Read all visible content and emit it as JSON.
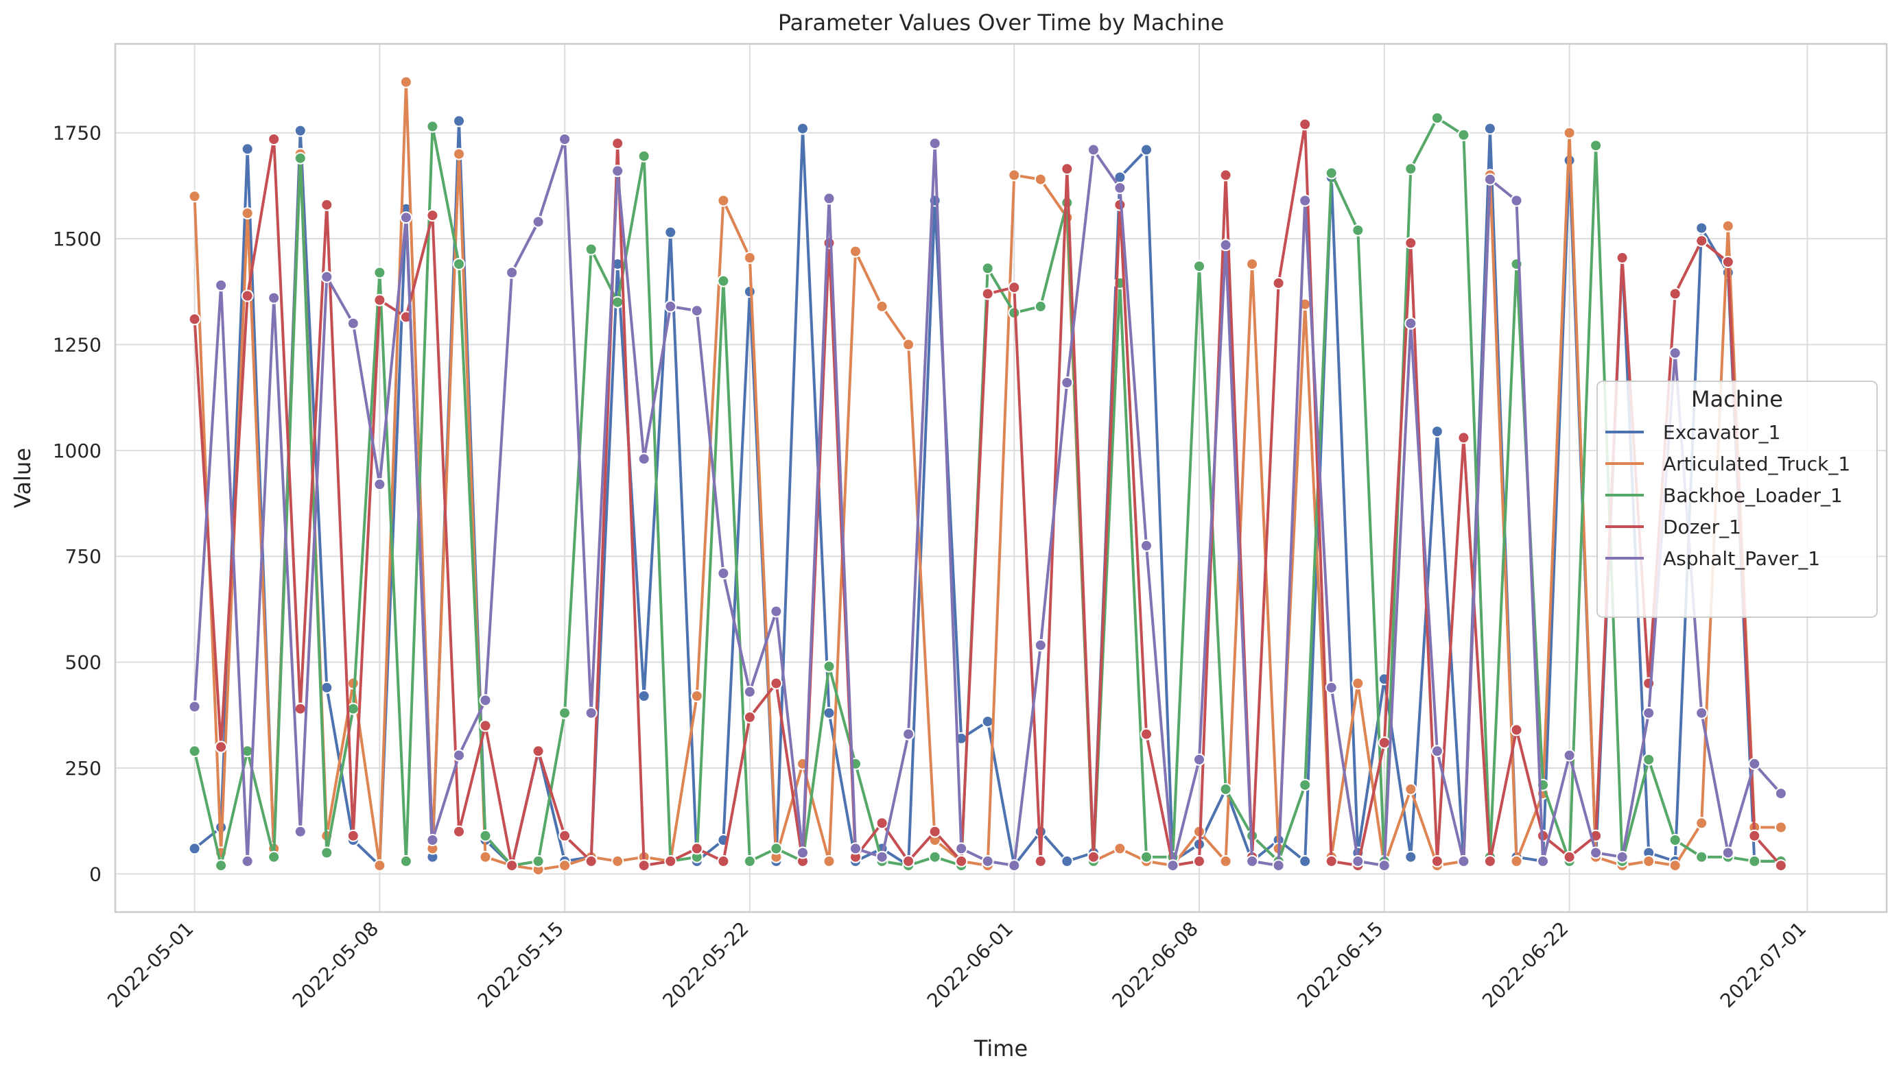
{
  "chart_data": {
    "type": "line",
    "title": "Parameter Values Over Time by Machine",
    "xlabel": "Time",
    "ylabel": "Value",
    "xlim": [
      "2022-04-28",
      "2022-07-04"
    ],
    "ylim": [
      -90,
      1960
    ],
    "x_ticks": [
      "2022-05-01",
      "2022-05-08",
      "2022-05-15",
      "2022-05-22",
      "2022-06-01",
      "2022-06-08",
      "2022-06-15",
      "2022-06-22",
      "2022-07-01"
    ],
    "y_ticks": [
      0,
      250,
      500,
      750,
      1000,
      1250,
      1500,
      1750
    ],
    "grid": true,
    "legend": {
      "title": "Machine",
      "position": "center-right"
    },
    "series": [
      {
        "name": "Excavator_1",
        "color": "#4c72b0",
        "x": [
          "2022-05-01",
          "2022-05-02",
          "2022-05-03",
          "2022-05-04",
          "2022-05-05",
          "2022-05-06",
          "2022-05-07",
          "2022-05-08",
          "2022-05-09",
          "2022-05-10",
          "2022-05-11",
          "2022-05-12",
          "2022-05-13",
          "2022-05-14",
          "2022-05-15",
          "2022-05-16",
          "2022-05-17",
          "2022-05-18",
          "2022-05-19",
          "2022-05-20",
          "2022-05-21",
          "2022-05-22",
          "2022-05-23",
          "2022-05-24",
          "2022-05-25",
          "2022-05-26",
          "2022-05-27",
          "2022-05-28",
          "2022-05-29",
          "2022-05-30",
          "2022-05-31",
          "2022-06-01",
          "2022-06-02",
          "2022-06-03",
          "2022-06-04",
          "2022-06-05",
          "2022-06-06",
          "2022-06-07",
          "2022-06-08",
          "2022-06-09",
          "2022-06-10",
          "2022-06-11",
          "2022-06-12",
          "2022-06-13",
          "2022-06-14",
          "2022-06-15",
          "2022-06-16",
          "2022-06-17",
          "2022-06-18",
          "2022-06-19",
          "2022-06-20",
          "2022-06-21",
          "2022-06-22",
          "2022-06-23",
          "2022-06-24",
          "2022-06-25",
          "2022-06-26",
          "2022-06-27",
          "2022-06-28",
          "2022-06-29",
          "2022-06-30"
        ],
        "y": [
          60,
          110,
          1712,
          50,
          1755,
          440,
          80,
          20,
          1570,
          40,
          1778,
          80,
          20,
          290,
          30,
          40,
          1440,
          420,
          1515,
          30,
          80,
          1375,
          30,
          1760,
          380,
          30,
          60,
          20,
          1590,
          320,
          360,
          20,
          100,
          30,
          50,
          1645,
          1710,
          30,
          70,
          200,
          30,
          80,
          30,
          1645,
          50,
          460,
          40,
          1045,
          30,
          1760,
          40,
          30,
          1685,
          40,
          1455,
          50,
          30,
          1525,
          1420,
          30,
          30
        ]
      },
      {
        "name": "Articulated_Truck_1",
        "color": "#dd8452",
        "x": [
          "2022-05-01",
          "2022-05-02",
          "2022-05-03",
          "2022-05-04",
          "2022-05-05",
          "2022-05-06",
          "2022-05-07",
          "2022-05-08",
          "2022-05-09",
          "2022-05-10",
          "2022-05-11",
          "2022-05-12",
          "2022-05-13",
          "2022-05-14",
          "2022-05-15",
          "2022-05-16",
          "2022-05-17",
          "2022-05-18",
          "2022-05-19",
          "2022-05-20",
          "2022-05-21",
          "2022-05-22",
          "2022-05-23",
          "2022-05-24",
          "2022-05-25",
          "2022-05-26",
          "2022-05-27",
          "2022-05-28",
          "2022-05-29",
          "2022-05-30",
          "2022-05-31",
          "2022-06-01",
          "2022-06-02",
          "2022-06-03",
          "2022-06-04",
          "2022-06-05",
          "2022-06-06",
          "2022-06-07",
          "2022-06-08",
          "2022-06-09",
          "2022-06-10",
          "2022-06-11",
          "2022-06-12",
          "2022-06-13",
          "2022-06-14",
          "2022-06-15",
          "2022-06-16",
          "2022-06-17",
          "2022-06-18",
          "2022-06-19",
          "2022-06-20",
          "2022-06-21",
          "2022-06-22",
          "2022-06-23",
          "2022-06-24",
          "2022-06-25",
          "2022-06-26",
          "2022-06-27",
          "2022-06-28",
          "2022-06-29",
          "2022-06-30"
        ],
        "y": [
          1600,
          50,
          1560,
          60,
          1700,
          90,
          450,
          20,
          1870,
          60,
          1700,
          40,
          20,
          10,
          20,
          40,
          30,
          40,
          30,
          420,
          1590,
          1455,
          40,
          260,
          30,
          1470,
          1340,
          1250,
          80,
          30,
          20,
          1650,
          1640,
          1550,
          30,
          60,
          30,
          20,
          100,
          30,
          1440,
          60,
          1345,
          40,
          450,
          20,
          200,
          20,
          30,
          1650,
          30,
          190,
          1750,
          40,
          20,
          30,
          20,
          120,
          1530,
          110,
          110
        ]
      },
      {
        "name": "Backhoe_Loader_1",
        "color": "#55a868",
        "x": [
          "2022-05-01",
          "2022-05-02",
          "2022-05-03",
          "2022-05-04",
          "2022-05-05",
          "2022-05-06",
          "2022-05-07",
          "2022-05-08",
          "2022-05-09",
          "2022-05-10",
          "2022-05-11",
          "2022-05-12",
          "2022-05-13",
          "2022-05-14",
          "2022-05-15",
          "2022-05-16",
          "2022-05-17",
          "2022-05-18",
          "2022-05-19",
          "2022-05-20",
          "2022-05-21",
          "2022-05-22",
          "2022-05-23",
          "2022-05-24",
          "2022-05-25",
          "2022-05-26",
          "2022-05-27",
          "2022-05-28",
          "2022-05-29",
          "2022-05-30",
          "2022-05-31",
          "2022-06-01",
          "2022-06-02",
          "2022-06-03",
          "2022-06-04",
          "2022-06-05",
          "2022-06-06",
          "2022-06-07",
          "2022-06-08",
          "2022-06-09",
          "2022-06-10",
          "2022-06-11",
          "2022-06-12",
          "2022-06-13",
          "2022-06-14",
          "2022-06-15",
          "2022-06-16",
          "2022-06-17",
          "2022-06-18",
          "2022-06-19",
          "2022-06-20",
          "2022-06-21",
          "2022-06-22",
          "2022-06-23",
          "2022-06-24",
          "2022-06-25",
          "2022-06-26",
          "2022-06-27",
          "2022-06-28",
          "2022-06-29",
          "2022-06-30"
        ],
        "y": [
          290,
          20,
          290,
          40,
          1690,
          50,
          390,
          1420,
          30,
          1765,
          1440,
          90,
          20,
          30,
          380,
          1475,
          1350,
          1695,
          30,
          40,
          1400,
          30,
          60,
          30,
          490,
          260,
          30,
          20,
          40,
          20,
          1430,
          1325,
          1340,
          1585,
          30,
          1395,
          40,
          40,
          1435,
          200,
          90,
          30,
          210,
          1655,
          1520,
          30,
          1665,
          1785,
          1745,
          40,
          1440,
          210,
          30,
          1720,
          30,
          270,
          80,
          40,
          40,
          30,
          30
        ]
      },
      {
        "name": "Dozer_1",
        "color": "#c44e52",
        "x": [
          "2022-05-01",
          "2022-05-02",
          "2022-05-03",
          "2022-05-04",
          "2022-05-05",
          "2022-05-06",
          "2022-05-07",
          "2022-05-08",
          "2022-05-09",
          "2022-05-10",
          "2022-05-11",
          "2022-05-12",
          "2022-05-13",
          "2022-05-14",
          "2022-05-15",
          "2022-05-16",
          "2022-05-17",
          "2022-05-18",
          "2022-05-19",
          "2022-05-20",
          "2022-05-21",
          "2022-05-22",
          "2022-05-23",
          "2022-05-24",
          "2022-05-25",
          "2022-05-26",
          "2022-05-27",
          "2022-05-28",
          "2022-05-29",
          "2022-05-30",
          "2022-05-31",
          "2022-06-01",
          "2022-06-02",
          "2022-06-03",
          "2022-06-04",
          "2022-06-05",
          "2022-06-06",
          "2022-06-07",
          "2022-06-08",
          "2022-06-09",
          "2022-06-10",
          "2022-06-11",
          "2022-06-12",
          "2022-06-13",
          "2022-06-14",
          "2022-06-15",
          "2022-06-16",
          "2022-06-17",
          "2022-06-18",
          "2022-06-19",
          "2022-06-20",
          "2022-06-21",
          "2022-06-22",
          "2022-06-23",
          "2022-06-24",
          "2022-06-25",
          "2022-06-26",
          "2022-06-27",
          "2022-06-28",
          "2022-06-29",
          "2022-06-30"
        ],
        "y": [
          1310,
          300,
          1365,
          1735,
          390,
          1580,
          90,
          1355,
          1315,
          1555,
          100,
          350,
          20,
          290,
          90,
          30,
          1725,
          20,
          30,
          60,
          30,
          370,
          450,
          30,
          1490,
          40,
          120,
          30,
          100,
          30,
          1370,
          1385,
          30,
          1665,
          40,
          1580,
          330,
          20,
          30,
          1650,
          40,
          1395,
          1770,
          30,
          20,
          310,
          1490,
          30,
          1030,
          30,
          340,
          90,
          40,
          90,
          1455,
          450,
          1370,
          1495,
          1445,
          90,
          20
        ]
      },
      {
        "name": "Asphalt_Paver_1",
        "color": "#8172b3",
        "x": [
          "2022-05-01",
          "2022-05-02",
          "2022-05-03",
          "2022-05-04",
          "2022-05-05",
          "2022-05-06",
          "2022-05-07",
          "2022-05-08",
          "2022-05-09",
          "2022-05-10",
          "2022-05-11",
          "2022-05-12",
          "2022-05-13",
          "2022-05-14",
          "2022-05-15",
          "2022-05-16",
          "2022-05-17",
          "2022-05-18",
          "2022-05-19",
          "2022-05-20",
          "2022-05-21",
          "2022-05-22",
          "2022-05-23",
          "2022-05-24",
          "2022-05-25",
          "2022-05-26",
          "2022-05-27",
          "2022-05-28",
          "2022-05-29",
          "2022-05-30",
          "2022-05-31",
          "2022-06-01",
          "2022-06-02",
          "2022-06-03",
          "2022-06-04",
          "2022-06-05",
          "2022-06-06",
          "2022-06-07",
          "2022-06-08",
          "2022-06-09",
          "2022-06-10",
          "2022-06-11",
          "2022-06-12",
          "2022-06-13",
          "2022-06-14",
          "2022-06-15",
          "2022-06-16",
          "2022-06-17",
          "2022-06-18",
          "2022-06-19",
          "2022-06-20",
          "2022-06-21",
          "2022-06-22",
          "2022-06-23",
          "2022-06-24",
          "2022-06-25",
          "2022-06-26",
          "2022-06-27",
          "2022-06-28",
          "2022-06-29",
          "2022-06-30"
        ],
        "y": [
          395,
          1390,
          30,
          1360,
          100,
          1410,
          1300,
          920,
          1550,
          80,
          280,
          410,
          1420,
          1540,
          1735,
          380,
          1660,
          980,
          1340,
          1330,
          710,
          430,
          620,
          50,
          1595,
          60,
          40,
          330,
          1725,
          60,
          30,
          20,
          540,
          1160,
          1710,
          1620,
          775,
          20,
          270,
          1485,
          30,
          20,
          1590,
          440,
          30,
          20,
          1300,
          290,
          30,
          1640,
          1590,
          30,
          280,
          50,
          40,
          380,
          1230,
          380,
          50,
          260,
          190
        ]
      }
    ]
  }
}
